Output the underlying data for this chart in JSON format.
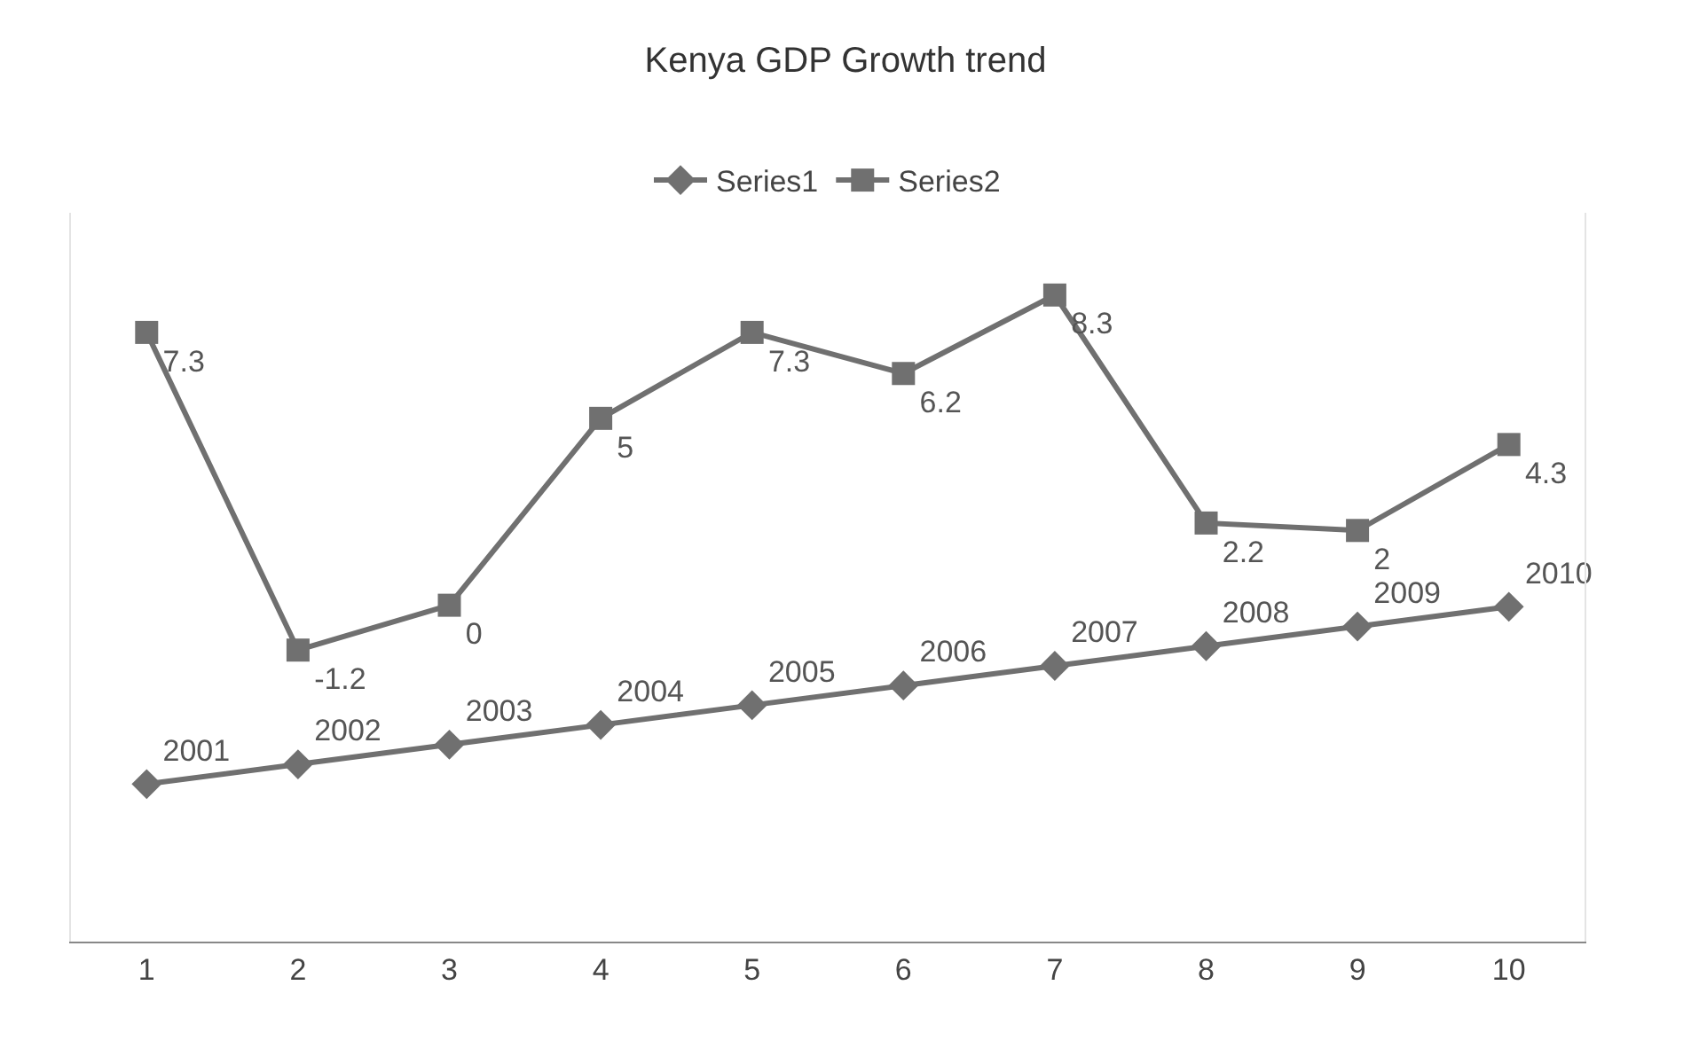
{
  "chart_data": {
    "type": "line",
    "title": "Kenya GDP Growth trend",
    "categories": [
      "1",
      "2",
      "3",
      "4",
      "5",
      "6",
      "7",
      "8",
      "9",
      "10"
    ],
    "series": [
      {
        "name": "Series1",
        "color": "#707070",
        "marker": "diamond",
        "values": [
          2001,
          2002,
          2003,
          2004,
          2005,
          2006,
          2007,
          2008,
          2009,
          2010
        ]
      },
      {
        "name": "Series2",
        "color": "#707070",
        "marker": "square",
        "axis": "y2",
        "values": [
          7.3,
          -1.2,
          0,
          5,
          7.3,
          6.2,
          8.3,
          2.2,
          2,
          4.3
        ]
      }
    ],
    "ylim": [
      1993,
      2030
    ],
    "y2lim": [
      -9,
      10.5
    ],
    "data_labels": true,
    "legend": "top",
    "tick_labels": "x",
    "line_style": "solid"
  }
}
